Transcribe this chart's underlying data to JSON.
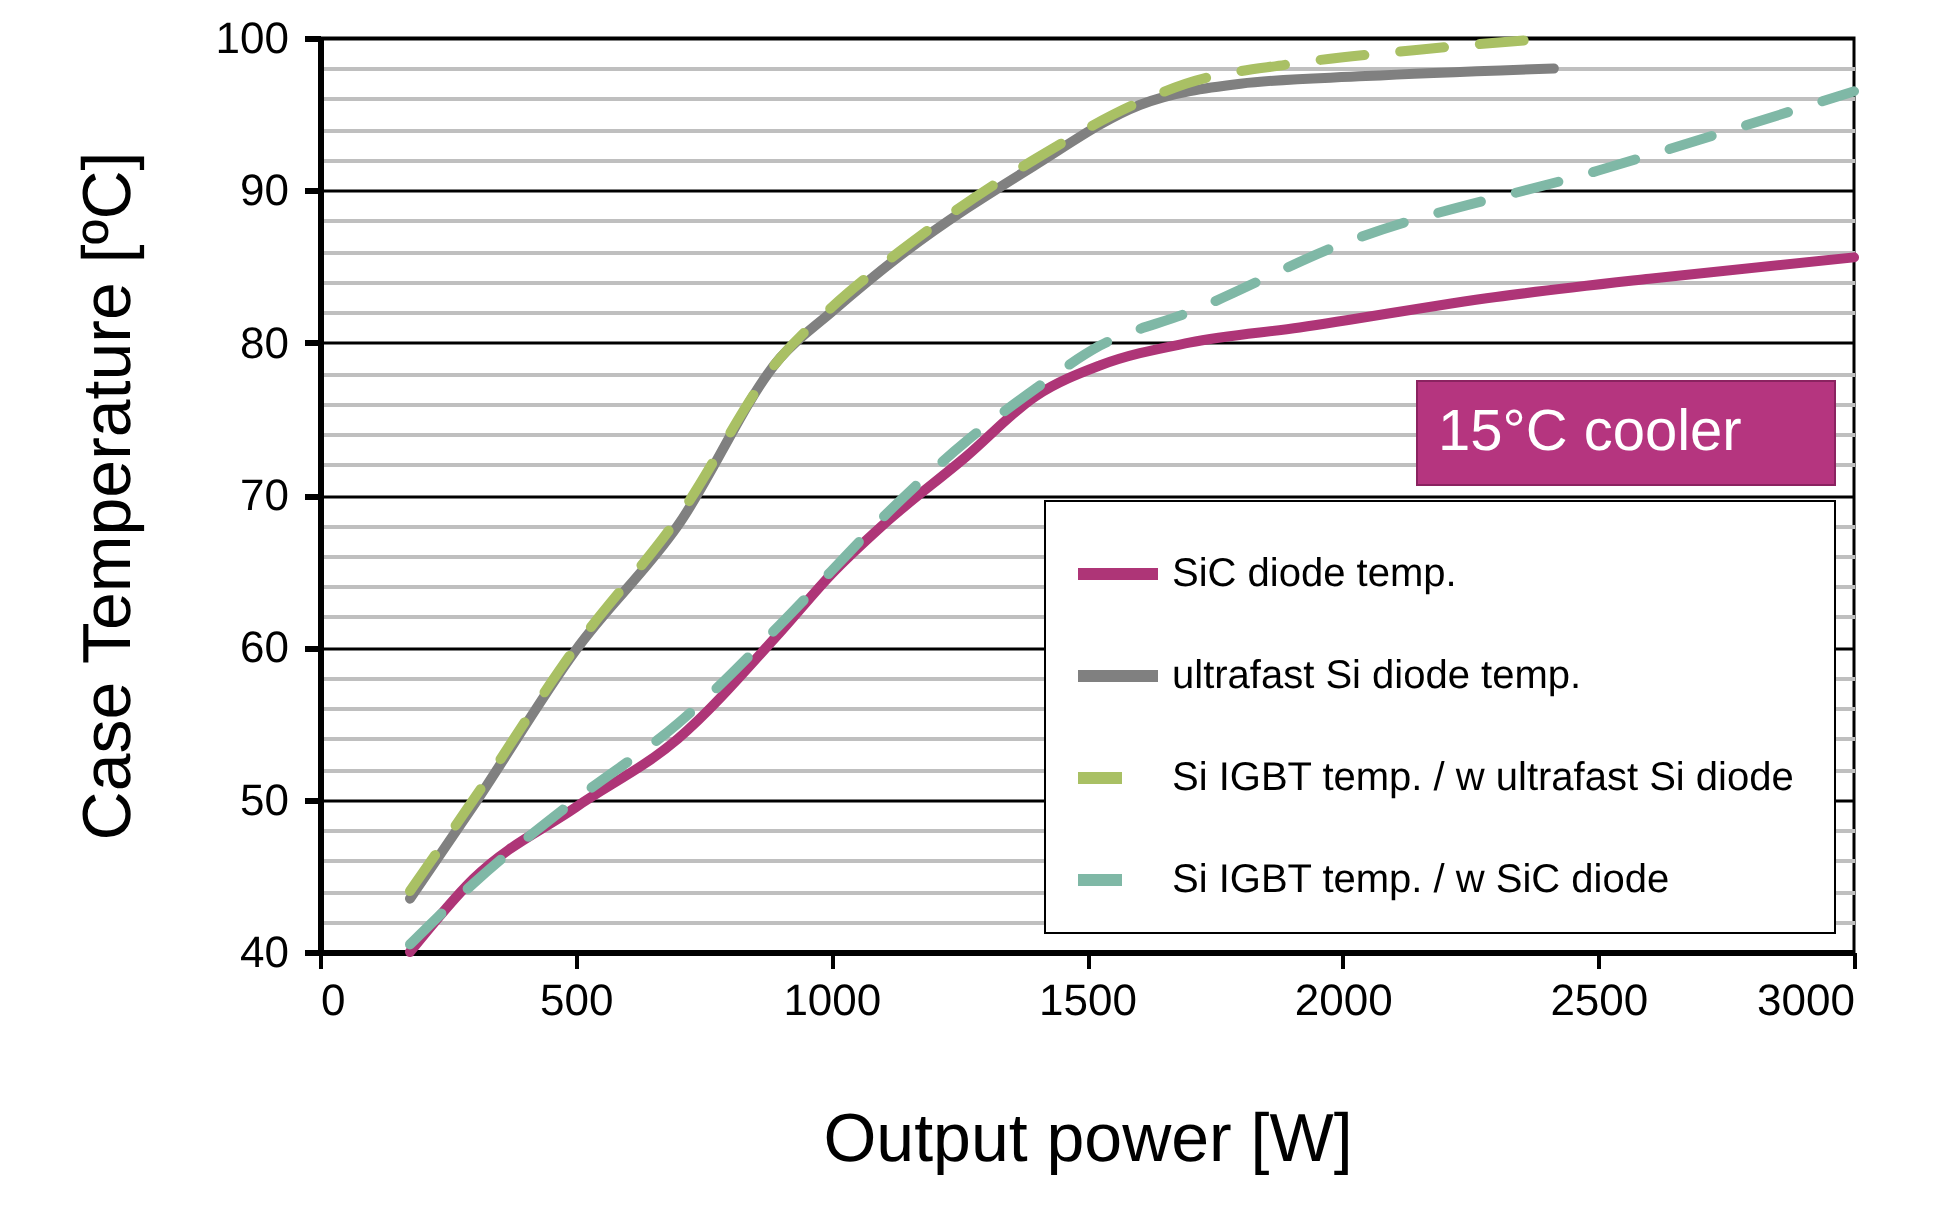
{
  "chart_data": {
    "type": "line",
    "xlabel": "Output power [W]",
    "ylabel": "Case Temperature [ºC]",
    "xlim": [
      0,
      3000
    ],
    "xticks": [
      0,
      500,
      1000,
      1500,
      2000,
      2500,
      3000
    ],
    "ylim": [
      40,
      100
    ],
    "yticks": [
      40,
      {
        "value": 42,
        "label": null
      },
      {
        "value": 44,
        "label": null
      },
      {
        "value": 46,
        "label": null
      },
      {
        "value": 48,
        "label": null
      },
      50,
      {
        "value": 52,
        "label": null
      },
      {
        "value": 54,
        "label": null
      },
      {
        "value": 56,
        "label": null
      },
      {
        "value": 58,
        "label": null
      },
      60,
      {
        "value": 62,
        "label": null
      },
      {
        "value": 64,
        "label": null
      },
      {
        "value": 66,
        "label": null
      },
      {
        "value": 68,
        "label": null
      },
      70,
      {
        "value": 72,
        "label": null
      },
      {
        "value": 74,
        "label": null
      },
      {
        "value": 76,
        "label": null
      },
      {
        "value": 78,
        "label": null
      },
      80,
      {
        "value": 82,
        "label": null
      },
      {
        "value": 84,
        "label": null
      },
      {
        "value": 86,
        "label": null
      },
      {
        "value": 88,
        "label": null
      },
      90,
      {
        "value": 92,
        "label": null
      },
      {
        "value": 94,
        "label": null
      },
      {
        "value": 96,
        "label": null
      },
      {
        "value": 98,
        "label": null
      },
      100
    ],
    "grid": "y",
    "legend": "bottom right",
    "marker": "none",
    "annotations": [
      "15°C cooler"
    ],
    "series": [
      {
        "name": "SiC diode temp.",
        "color": "#ae3577",
        "line_style": "solid",
        "x": [
          176,
          300,
          500,
          700,
          900,
          1000,
          1100,
          1263,
          1400,
          1525,
          1700,
          1916,
          2300,
          2600,
          3000
        ],
        "values": [
          40,
          44.8,
          49.5,
          54,
          61,
          64.8,
          68,
          72.5,
          76.5,
          78.5,
          80,
          81,
          83,
          84.2,
          85.6
        ]
      },
      {
        "name": "ultrafast Si diode temp.",
        "color": "#808080",
        "line_style": "solid",
        "x": [
          176,
          300,
          500,
          700,
          900,
          1000,
          1134,
          1396,
          1603,
          1800,
          2045,
          2413
        ],
        "values": [
          43.5,
          49.6,
          59.8,
          68,
          79,
          82,
          85.7,
          91.6,
          95.6,
          97,
          97.5,
          98
        ]
      },
      {
        "name": "Si IGBT temp. / w  ultrafast Si diode",
        "color": "#a9c064",
        "line_style": "dashed",
        "x": [
          176,
          300,
          500,
          700,
          900,
          1000,
          1134,
          1396,
          1603,
          1693,
          1900,
          2139,
          2413
        ],
        "values": [
          44,
          50,
          60,
          68.5,
          79,
          82.3,
          86,
          92,
          95.8,
          97,
          98.3,
          99.2,
          100
        ]
      },
      {
        "name": "Si IGBT temp. / w SiC diode",
        "color": "#7fb8a6",
        "line_style": "dashed",
        "x": [
          176,
          300,
          500,
          700,
          900,
          1000,
          1100,
          1263,
          1400,
          1525,
          1700,
          2000,
          2500,
          3000
        ],
        "values": [
          40.5,
          44.5,
          50,
          55,
          61.5,
          65,
          68.5,
          73.5,
          77,
          79.8,
          82,
          86.5,
          91.3,
          96.5
        ]
      }
    ]
  }
}
